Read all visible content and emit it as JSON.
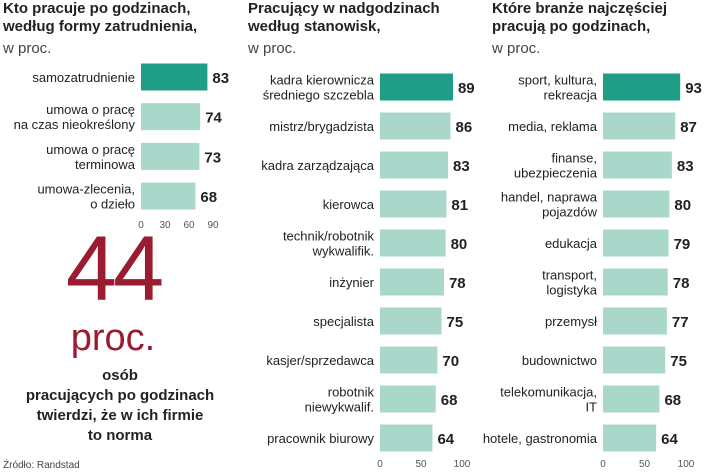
{
  "chart_data": [
    {
      "type": "bar",
      "horizontal": true,
      "title": "Kto pracuje po godzinach,\nwedług formy zatrudnienia,",
      "subtitle": "w proc.",
      "categories": [
        "samozatrudnienie",
        "umowa o pracę\nna czas nieokreślony",
        "umowa o pracę\nterminowa",
        "umowa-zlecenia,\no dzieło"
      ],
      "values": [
        83,
        74,
        73,
        68
      ],
      "colors": [
        "#1f9e85",
        "#a9d8cb",
        "#a9d8cb",
        "#a9d8cb"
      ],
      "xlim": [
        0,
        90
      ],
      "xticks": [
        0,
        30,
        60,
        90
      ]
    },
    {
      "type": "bar",
      "horizontal": true,
      "title": "Pracujący w nadgodzinach\nwedług stanowisk,",
      "subtitle": "w proc.",
      "categories": [
        "kadra kierownicza\nśredniego szczebla",
        "mistrz/brygadzista",
        "kadra zarządzająca",
        "kierowca",
        "technik/robotnik\nwykwalifik.",
        "inżynier",
        "specjalista",
        "kasjer/sprzedawca",
        "robotnik\nniewykwalif.",
        "pracownik biurowy"
      ],
      "values": [
        89,
        86,
        83,
        81,
        80,
        78,
        75,
        70,
        68,
        64
      ],
      "colors": [
        "#1f9e85",
        "#a9d8cb",
        "#a9d8cb",
        "#a9d8cb",
        "#a9d8cb",
        "#a9d8cb",
        "#a9d8cb",
        "#a9d8cb",
        "#a9d8cb",
        "#a9d8cb"
      ],
      "xlim": [
        0,
        100
      ],
      "xticks": [
        0,
        50,
        100
      ]
    },
    {
      "type": "bar",
      "horizontal": true,
      "title": "Które branże najczęściej\npracują po godzinach,",
      "subtitle": "w proc.",
      "categories": [
        "sport, kultura,\nrekreacja",
        "media, reklama",
        "finanse,\nubezpieczenia",
        "handel, naprawa\npojazdów",
        "edukacja",
        "transport,\nlogistyka",
        "przemysł",
        "budownictwo",
        "telekomunikacja,\nIT",
        "hotele, gastronomia"
      ],
      "values": [
        93,
        87,
        83,
        80,
        79,
        78,
        77,
        75,
        68,
        64
      ],
      "colors": [
        "#1f9e85",
        "#a9d8cb",
        "#a9d8cb",
        "#a9d8cb",
        "#a9d8cb",
        "#a9d8cb",
        "#a9d8cb",
        "#a9d8cb",
        "#a9d8cb",
        "#a9d8cb"
      ],
      "xlim": [
        0,
        100
      ],
      "xticks": [
        0,
        50,
        100
      ]
    }
  ],
  "callout": {
    "number": "44",
    "unit": "proc.",
    "text": "osób\npracujących po godzinach\ntwierdzi, że w ich firmie\nto norma"
  },
  "source": "Źródło: Randstad"
}
